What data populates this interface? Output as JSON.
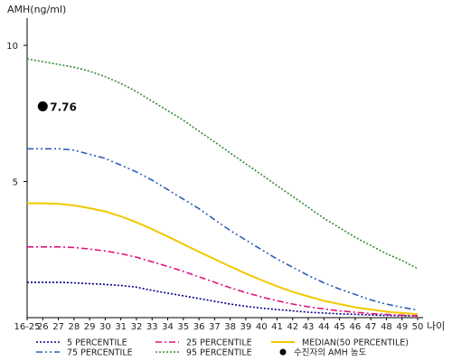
{
  "chart_data": {
    "type": "line",
    "ylabel": "AMH(ng/ml)",
    "xlabel": "나이",
    "ylim": [
      0,
      11
    ],
    "yticks": [
      5,
      10
    ],
    "categories": [
      "16-25",
      "26",
      "27",
      "28",
      "29",
      "30",
      "31",
      "32",
      "33",
      "34",
      "35",
      "36",
      "37",
      "38",
      "39",
      "40",
      "41",
      "42",
      "43",
      "44",
      "45",
      "46",
      "47",
      "48",
      "49",
      "50"
    ],
    "series": [
      {
        "name": "5 PERCENTILE",
        "color": "#00008b",
        "dash": "2,2",
        "values": [
          1.3,
          1.3,
          1.3,
          1.28,
          1.25,
          1.22,
          1.18,
          1.12,
          1.0,
          0.9,
          0.8,
          0.7,
          0.6,
          0.5,
          0.42,
          0.35,
          0.3,
          0.25,
          0.2,
          0.17,
          0.14,
          0.12,
          0.1,
          0.08,
          0.07,
          0.06
        ]
      },
      {
        "name": "25 PERCENTILE",
        "color": "#e0147a",
        "dash": "7,3,2,3",
        "values": [
          2.6,
          2.6,
          2.6,
          2.58,
          2.52,
          2.45,
          2.35,
          2.22,
          2.05,
          1.88,
          1.7,
          1.5,
          1.3,
          1.1,
          0.92,
          0.76,
          0.62,
          0.5,
          0.4,
          0.32,
          0.25,
          0.2,
          0.15,
          0.12,
          0.09,
          0.07
        ]
      },
      {
        "name": "MEDIAN(50 PERCENTILE)",
        "color": "#f2c800",
        "dash": "",
        "values": [
          4.2,
          4.2,
          4.18,
          4.12,
          4.02,
          3.9,
          3.72,
          3.5,
          3.25,
          2.98,
          2.7,
          2.42,
          2.15,
          1.88,
          1.62,
          1.38,
          1.15,
          0.95,
          0.78,
          0.62,
          0.5,
          0.38,
          0.3,
          0.22,
          0.17,
          0.13
        ]
      },
      {
        "name": "75 PERCENTILE",
        "color": "#2d5fb8",
        "dash": "7,3,2,3,2,3",
        "values": [
          6.2,
          6.2,
          6.2,
          6.15,
          6.0,
          5.85,
          5.6,
          5.35,
          5.05,
          4.7,
          4.35,
          4.0,
          3.6,
          3.2,
          2.85,
          2.5,
          2.15,
          1.85,
          1.55,
          1.28,
          1.05,
          0.85,
          0.65,
          0.5,
          0.38,
          0.28
        ]
      },
      {
        "name": "95 PERCENTILE",
        "color": "#3a8a3a",
        "dash": "2,2",
        "values": [
          9.5,
          9.4,
          9.3,
          9.2,
          9.05,
          8.85,
          8.6,
          8.3,
          7.95,
          7.6,
          7.25,
          6.85,
          6.45,
          6.05,
          5.65,
          5.25,
          4.85,
          4.45,
          4.05,
          3.65,
          3.3,
          2.95,
          2.65,
          2.35,
          2.1,
          1.8
        ]
      }
    ],
    "point": {
      "name": "수진자의 AMH 농도",
      "x": "26",
      "y": 7.76,
      "label": "7.76",
      "color": "#000000"
    },
    "legend": {
      "placement": "bottom"
    }
  }
}
